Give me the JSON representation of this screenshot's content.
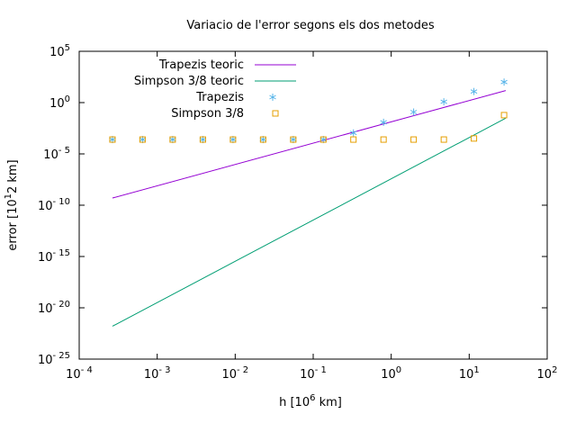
{
  "chart_data": {
    "type": "line",
    "title": "Variacio de l'error segons els dos metodes",
    "xlabel": {
      "prefix": "h [10",
      "exp": "6",
      "suffix": " km]"
    },
    "ylabel": {
      "prefix": "error [10",
      "exp": "1",
      "suffix": "2 km]"
    },
    "x_scale": "log",
    "y_scale": "log",
    "xlim": [
      0.0001,
      100
    ],
    "ylim": [
      1e-25,
      100000
    ],
    "x_ticks": [
      {
        "value": 0.0001,
        "base": "10",
        "exp": "- 4"
      },
      {
        "value": 0.001,
        "base": "10",
        "exp": "- 3"
      },
      {
        "value": 0.01,
        "base": "10",
        "exp": "- 2"
      },
      {
        "value": 0.1,
        "base": "10",
        "exp": "- 1"
      },
      {
        "value": 1,
        "base": "10",
        "exp": "0"
      },
      {
        "value": 10,
        "base": "10",
        "exp": "1"
      },
      {
        "value": 100,
        "base": "10",
        "exp": "2"
      }
    ],
    "y_ticks": [
      {
        "value": 100000,
        "base": "10",
        "exp": "5"
      },
      {
        "value": 1,
        "base": "10",
        "exp": "0"
      },
      {
        "value": 1e-05,
        "base": "10",
        "exp": "- 5"
      },
      {
        "value": 1e-10,
        "base": "10",
        "exp": "- 10"
      },
      {
        "value": 1e-15,
        "base": "10",
        "exp": "- 15"
      },
      {
        "value": 1e-20,
        "base": "10",
        "exp": "- 20"
      },
      {
        "value": 1e-25,
        "base": "10",
        "exp": "- 25"
      }
    ],
    "grid": false,
    "legend_position": "top-left",
    "series": [
      {
        "name": "Trapezis teoric",
        "kind": "line",
        "color": "#9400d3",
        "x": [
          0.000267,
          29.4
        ],
        "y": [
          5e-10,
          15
        ]
      },
      {
        "name": "Simpson 3/8 teoric",
        "kind": "line",
        "color": "#009e73",
        "x": [
          0.000267,
          29.4
        ],
        "y": [
          1.6e-22,
          0.03
        ]
      },
      {
        "name": "Trapezis",
        "kind": "points",
        "marker": "star",
        "color": "#56b4e9",
        "x": [
          0.000267,
          0.000649,
          0.00158,
          0.00385,
          0.00937,
          0.0228,
          0.0555,
          0.135,
          0.328,
          0.798,
          1.94,
          4.73,
          11.5,
          28.0
        ],
        "y": [
          0.00025,
          0.00025,
          0.00025,
          0.00025,
          0.00025,
          0.00025,
          0.00025,
          0.00025,
          0.0011,
          0.012,
          0.12,
          1.2,
          12,
          100
        ]
      },
      {
        "name": "Simpson 3/8",
        "kind": "points",
        "marker": "open-square",
        "color": "#e69f00",
        "x": [
          0.000267,
          0.000649,
          0.00158,
          0.00385,
          0.00937,
          0.0228,
          0.0555,
          0.135,
          0.328,
          0.798,
          1.94,
          4.73,
          11.5,
          28.0
        ],
        "y": [
          0.00025,
          0.00025,
          0.00025,
          0.00025,
          0.00025,
          0.00025,
          0.00025,
          0.00025,
          0.00025,
          0.00025,
          0.00025,
          0.00025,
          0.00032,
          0.06
        ]
      }
    ]
  }
}
